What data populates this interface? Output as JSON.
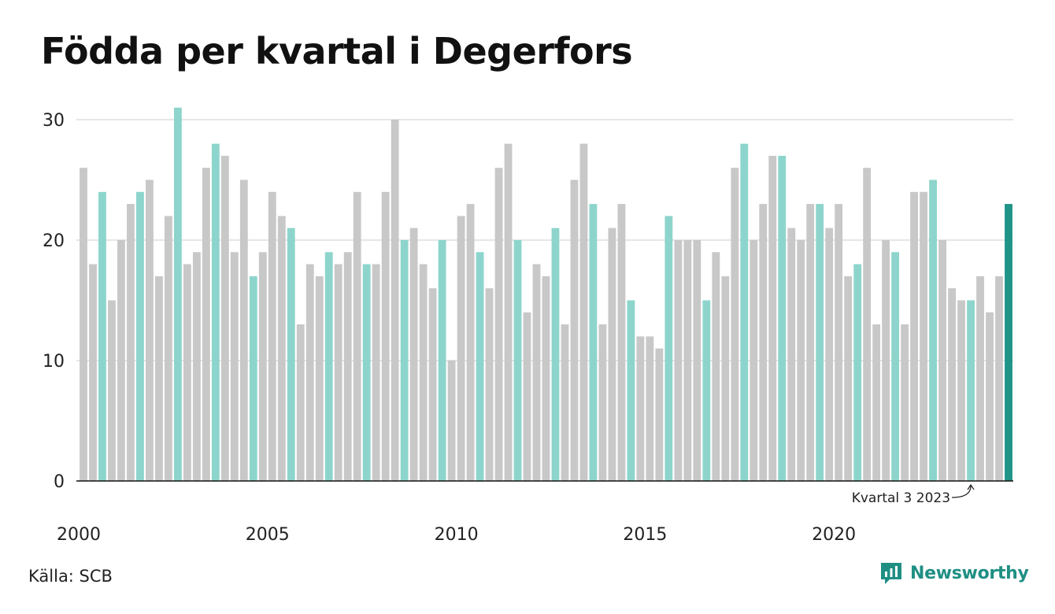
{
  "chart_data": {
    "type": "bar",
    "title": "Födda per kvartal i Degerfors",
    "source": "Källa: SCB",
    "brand": "Newsworthy",
    "annotation": "Kvartal 3 2023",
    "annotation_index": 94,
    "ylim": [
      0,
      31
    ],
    "yticks": [
      0,
      10,
      20,
      30
    ],
    "xticks": [
      "2000",
      "2005",
      "2010",
      "2015",
      "2020"
    ],
    "grid": true,
    "quarters_per_year": 4,
    "start_year": 2000,
    "colors": {
      "default": "#c8c8c8",
      "q3": "#8dd5cc",
      "latest": "#1f9487",
      "grid": "#dddddd",
      "axis": "#111111"
    },
    "values": [
      26,
      18,
      24,
      15,
      20,
      23,
      24,
      25,
      17,
      22,
      31,
      18,
      19,
      26,
      28,
      27,
      19,
      25,
      17,
      19,
      24,
      22,
      21,
      13,
      18,
      17,
      19,
      18,
      19,
      24,
      18,
      18,
      24,
      30,
      20,
      21,
      18,
      16,
      20,
      10,
      22,
      23,
      19,
      16,
      26,
      28,
      20,
      14,
      18,
      17,
      21,
      13,
      25,
      28,
      23,
      13,
      21,
      23,
      15,
      12,
      12,
      11,
      22,
      20,
      20,
      20,
      15,
      19,
      17,
      26,
      28,
      20,
      23,
      27,
      27,
      21,
      20,
      23,
      23,
      21,
      23,
      17,
      18,
      26,
      13,
      20,
      19,
      13,
      24,
      24,
      25,
      20,
      16,
      15,
      15,
      17,
      14,
      17,
      23
    ]
  }
}
